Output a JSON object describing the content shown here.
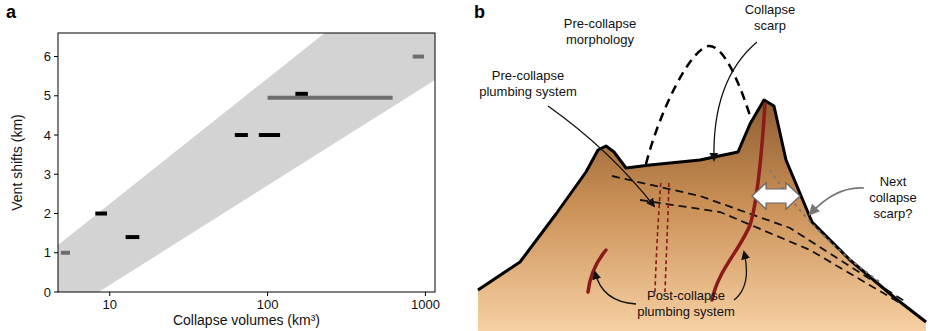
{
  "chart_data": {
    "type": "range",
    "panel_label": "a",
    "x_label": "Collapse volumes (km³)",
    "y_label": "Vent shifts (km)",
    "log": "x",
    "grid": false,
    "xlim": [
      4.7,
      1150
    ],
    "ylim": [
      0,
      6.6
    ],
    "xticks": [
      10,
      100,
      1000
    ],
    "yticks": [
      0,
      1,
      2,
      3,
      4,
      5,
      6
    ],
    "band": {
      "color": "#d3d3d3",
      "upper": {
        "x": [
          4.7,
          230
        ],
        "y": [
          1.2,
          6.6
        ]
      },
      "lower": {
        "x": [
          8.5,
          1150
        ],
        "y": [
          0,
          5.4
        ]
      }
    },
    "series": [
      {
        "color": "#6e6e6e",
        "values": [
          1,
          4.95,
          6
        ],
        "x_low": [
          4.9,
          100,
          830
        ],
        "x_high": [
          5.6,
          620,
          980
        ]
      },
      {
        "color": "#000000",
        "values": [
          2,
          1.4,
          4,
          4,
          5.05
        ],
        "x_low": [
          8.1,
          12.6,
          62,
          88,
          150
        ],
        "x_high": [
          9.6,
          15.4,
          75,
          120,
          180
        ]
      }
    ]
  },
  "diagram": {
    "panel_label": "b",
    "labels": [
      "Pre-collapse morphology",
      "Collapse scarp",
      "Pre-collapse plumbing system",
      "Next collapse scarp?",
      "Post-collapse plumbing system"
    ]
  }
}
